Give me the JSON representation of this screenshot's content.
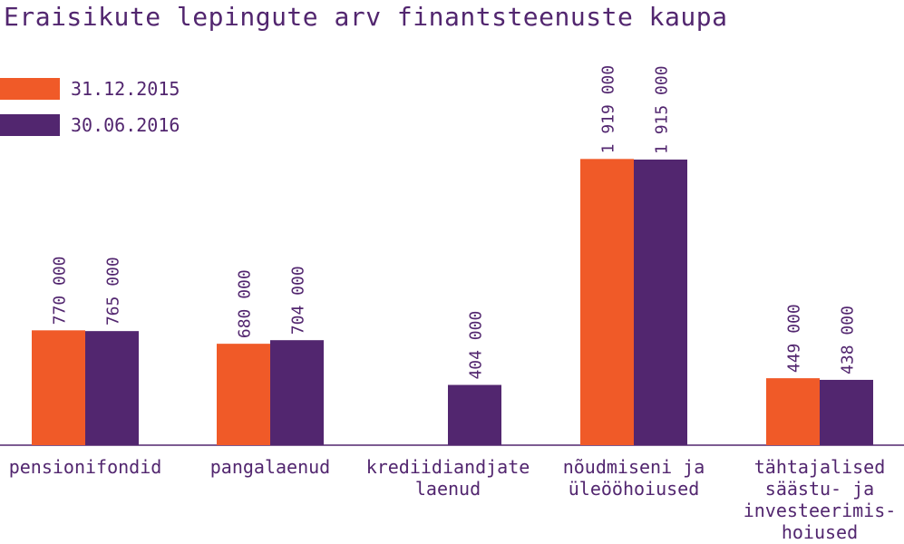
{
  "chart_data": {
    "type": "bar",
    "title": "Eraisikute lepingute arv finantsteenuste kaupa",
    "categories": [
      [
        "pensionifondid"
      ],
      [
        "pangalaenud"
      ],
      [
        "krediidiandjate",
        "laenud"
      ],
      [
        "nõudmiseni ja",
        "üleööhoiused"
      ],
      [
        "tähtajalised",
        "säästu- ja",
        "investeerimis-",
        "hoiused"
      ]
    ],
    "series": [
      {
        "name": "31.12.2015",
        "color": "#f05a28",
        "values": [
          770000,
          680000,
          null,
          1919000,
          449000
        ],
        "labels": [
          "770 000",
          "680 000",
          "",
          "1 919 000",
          "449 000"
        ]
      },
      {
        "name": "30.06.2016",
        "color": "#52266f",
        "values": [
          765000,
          704000,
          404000,
          1915000,
          438000
        ],
        "labels": [
          "765 000",
          "704 000",
          "404 000",
          "1 915 000",
          "438 000"
        ]
      }
    ],
    "ylim": [
      0,
      2000000
    ],
    "grid": false,
    "legend": "top-left"
  }
}
